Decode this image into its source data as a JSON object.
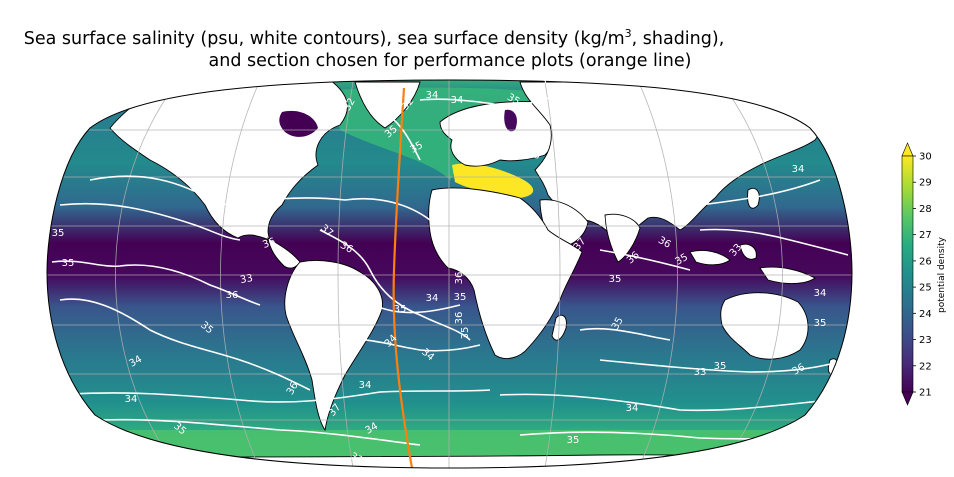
{
  "title": {
    "line1_pre": "Sea surface salinity (psu, white contours),  sea surface density (kg/m",
    "line1_sup": "3",
    "line1_post": ", shading),",
    "line2": "and section chosen for performance plots (orange line)"
  },
  "colorbar": {
    "label": "potential density",
    "ticks": [
      "21",
      "22",
      "23",
      "24",
      "25",
      "26",
      "27",
      "28",
      "29",
      "30"
    ],
    "min": 21,
    "max": 30,
    "extend": "both",
    "colormap": [
      "#440154",
      "#472c7a",
      "#3b518b",
      "#2c718e",
      "#21908d",
      "#27ad81",
      "#5cc863",
      "#aadc32",
      "#fde725"
    ]
  },
  "map": {
    "projection": "Robinson",
    "section_line_color": "#ff7f0e",
    "contour_color": "#ffffff",
    "contour_labels": [
      "32",
      "34",
      "35",
      "32",
      "34",
      "35",
      "33",
      "33",
      "34",
      "35",
      "35",
      "36",
      "37",
      "36",
      "33",
      "34",
      "35",
      "36",
      "37",
      "36",
      "35",
      "36",
      "35",
      "36",
      "35",
      "34",
      "35",
      "36",
      "35",
      "35",
      "34",
      "35",
      "34",
      "34",
      "34",
      "34",
      "34",
      "33",
      "35",
      "36",
      "37",
      "35",
      "34",
      "35",
      "33",
      "36",
      "35",
      "34",
      "33"
    ]
  }
}
